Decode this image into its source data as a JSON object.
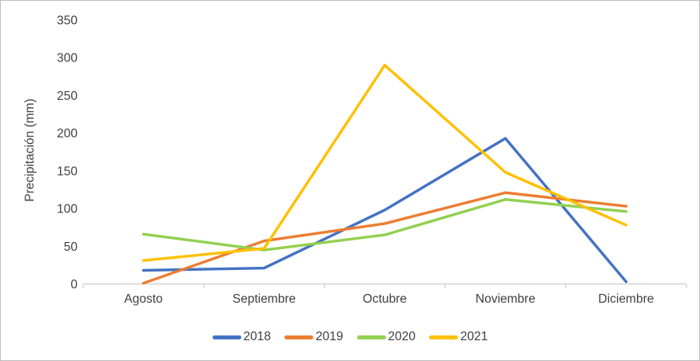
{
  "window": {
    "background": "#ffffff",
    "border_color": "#bdbdbd"
  },
  "styles": {
    "axis_color": "#d9d9d9",
    "text_color": "#3f3f3f"
  },
  "chart_data": {
    "type": "line",
    "title": "",
    "xlabel": "",
    "ylabel": "Precipitación (mm)",
    "categories": [
      "Agosto",
      "Septiembre",
      "Octubre",
      "Noviembre",
      "Diciembre"
    ],
    "series": [
      {
        "name": "2018",
        "color": "#4472C4",
        "values": [
          18,
          21,
          98,
          193,
          3
        ]
      },
      {
        "name": "2019",
        "color": "#ED7D31",
        "values": [
          1,
          57,
          80,
          121,
          103
        ]
      },
      {
        "name": "2020",
        "color": "#92D050",
        "values": [
          66,
          45,
          65,
          112,
          96
        ]
      },
      {
        "name": "2021",
        "color": "#FFC000",
        "values": [
          31,
          47,
          290,
          148,
          78
        ]
      }
    ],
    "ylim": [
      0,
      350
    ],
    "yticks": [
      0,
      50,
      100,
      150,
      200,
      250,
      300,
      350
    ],
    "grid": false,
    "legend_position": "bottom"
  }
}
